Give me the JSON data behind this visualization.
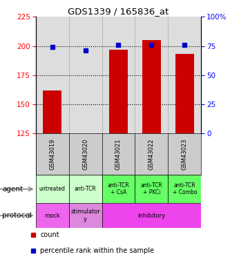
{
  "title": "GDS1339 / 165836_at",
  "samples": [
    "GSM43019",
    "GSM43020",
    "GSM43021",
    "GSM43022",
    "GSM43023"
  ],
  "count_values": [
    162,
    125,
    197,
    205,
    193
  ],
  "count_base": 125,
  "percentile_values": [
    74,
    71,
    76,
    76,
    76
  ],
  "ylim_left": [
    125,
    225
  ],
  "ylim_right": [
    0,
    100
  ],
  "yticks_left": [
    125,
    150,
    175,
    200,
    225
  ],
  "yticks_right": [
    0,
    25,
    50,
    75,
    100
  ],
  "bar_color": "#cc0000",
  "dot_color": "#0000cc",
  "agent_labels": [
    "untreated",
    "anti-TCR",
    "anti-TCR\n+ CsA",
    "anti-TCR\n+ PKCi",
    "anti-TCR\n+ Combo"
  ],
  "agent_colors_light": "#ccffcc",
  "agent_colors_dark": "#66ff66",
  "agent_color_map": [
    0,
    0,
    1,
    1,
    1
  ],
  "protocol_spans": [
    {
      "label": "mock",
      "start": 0,
      "end": 1,
      "color": "#ee66ee"
    },
    {
      "label": "stimulator\ny",
      "start": 1,
      "end": 2,
      "color": "#dd88dd"
    },
    {
      "label": "inhibitory",
      "start": 2,
      "end": 5,
      "color": "#ee44ee"
    }
  ],
  "legend_count_color": "#cc0000",
  "legend_pct_color": "#0000cc",
  "background_color": "#ffffff",
  "plot_bg_color": "#dddddd",
  "sample_bg_color": "#cccccc",
  "right_pct_suffix": "100%"
}
